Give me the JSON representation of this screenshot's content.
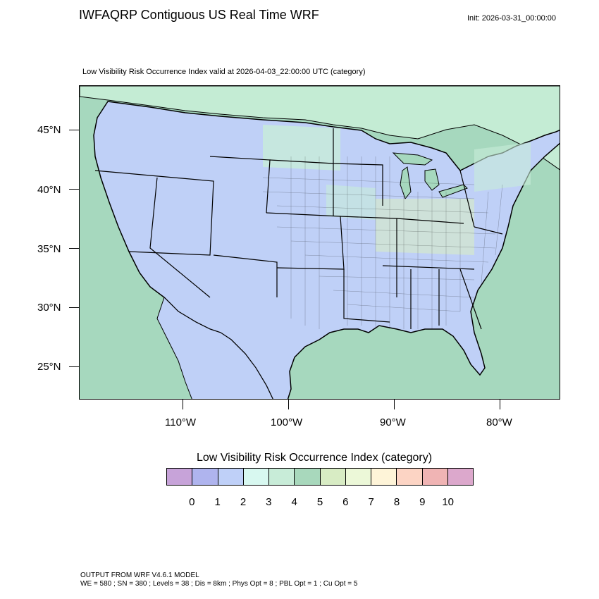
{
  "header": {
    "title": "IWFAQRP Contiguous US Real Time WRF",
    "init": "Init: 2026-03-31_00:00:00"
  },
  "plot": {
    "subtitle": "Low Visibility Risk Occurrence Index valid at 2026-04-03_22:00:00 UTC   (category)",
    "lat_labels": [
      "45°N",
      "40°N",
      "35°N",
      "30°N",
      "25°N"
    ],
    "lon_labels": [
      "110°W",
      "100°W",
      "90°W",
      "80°W"
    ],
    "land_color": "#bfd0f7",
    "ocean_color": "#a6d8be",
    "canada_color": "#c4ecd4"
  },
  "legend": {
    "title": "Low Visibility Risk Occurrence Index  (category)",
    "labels": [
      "0",
      "1",
      "2",
      "3",
      "4",
      "5",
      "6",
      "7",
      "8",
      "9",
      "10"
    ],
    "colors": [
      "#c7a3d9",
      "#afb4ee",
      "#bfd0f8",
      "#d8f8f0",
      "#c8ecd8",
      "#a8d8bc",
      "#d8ecc4",
      "#ecf8d8",
      "#fef4d8",
      "#fcd4c4",
      "#f0b4b4",
      "#dca8cc"
    ]
  },
  "footer": {
    "line1": "OUTPUT FROM WRF V4.6.1 MODEL",
    "line2": "WE = 580 ; SN = 380 ; Levels = 38 ; Dis = 8km ; Phys Opt = 8 ; PBL Opt = 1 ; Cu Opt = 5"
  }
}
